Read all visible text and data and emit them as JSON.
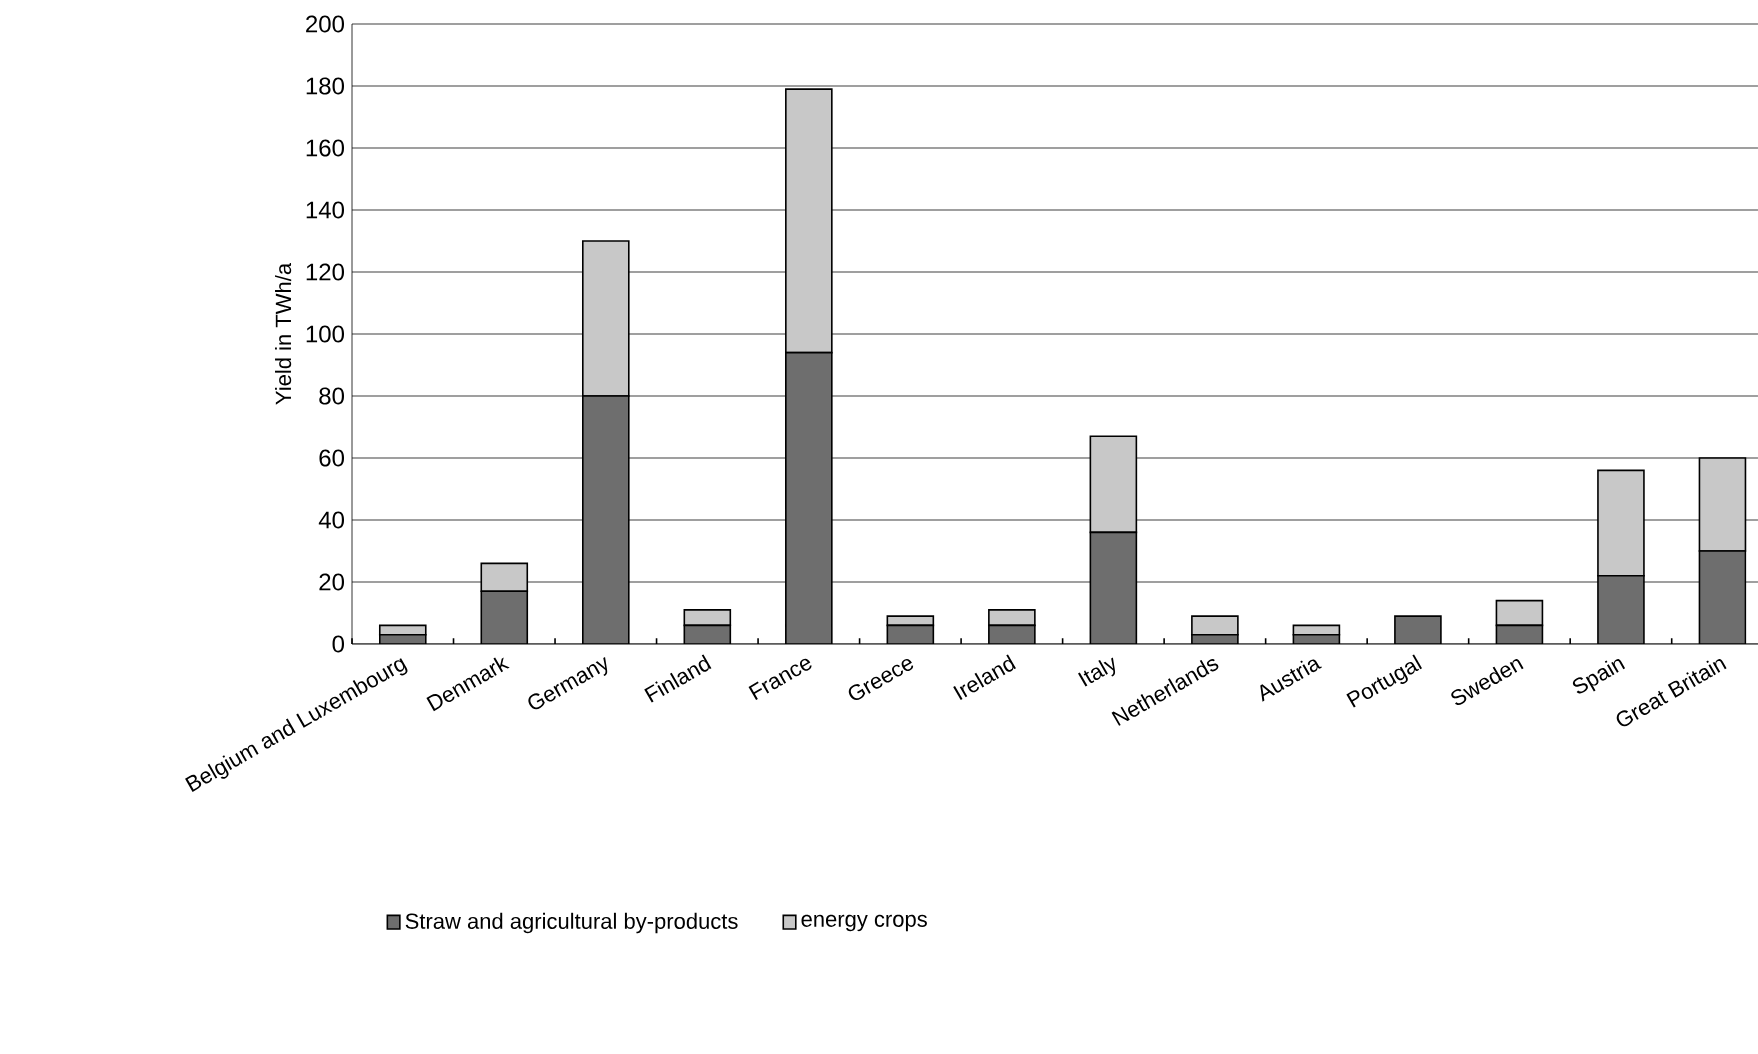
{
  "chart_data": {
    "type": "bar",
    "stacked": true,
    "ylabel": "Yield in TWh/a",
    "categories": [
      "Belgium and Luxembourg",
      "Denmark",
      "Germany",
      "Finland",
      "France",
      "Greece",
      "Ireland",
      "Italy",
      "Netherlands",
      "Austria",
      "Portugal",
      "Sweden",
      "Spain",
      "Great Britain"
    ],
    "series": [
      {
        "name": "Straw and agricultural by-products",
        "color": "#6e6e6e",
        "values": [
          3,
          17,
          80,
          6,
          94,
          6,
          6,
          36,
          3,
          3,
          9,
          6,
          22,
          30
        ]
      },
      {
        "name": "energy crops",
        "color": "#c8c8c8",
        "values": [
          3,
          9,
          50,
          5,
          85,
          3,
          5,
          31,
          6,
          3,
          null,
          8,
          34,
          30
        ]
      }
    ],
    "ylim": [
      0,
      200
    ],
    "yticks": [
      0,
      20,
      40,
      60,
      80,
      100,
      120,
      140,
      160,
      180,
      200
    ],
    "grid": "y",
    "legend": "bottom"
  }
}
